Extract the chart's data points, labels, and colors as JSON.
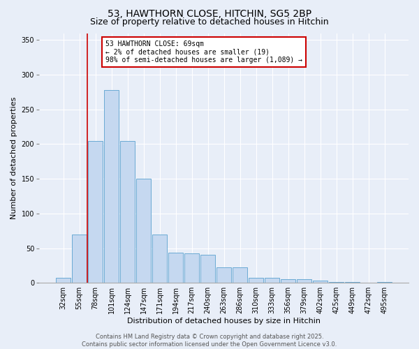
{
  "title": "53, HAWTHORN CLOSE, HITCHIN, SG5 2BP",
  "subtitle": "Size of property relative to detached houses in Hitchin",
  "xlabel": "Distribution of detached houses by size in Hitchin",
  "ylabel": "Number of detached properties",
  "categories": [
    "32sqm",
    "55sqm",
    "78sqm",
    "101sqm",
    "124sqm",
    "147sqm",
    "171sqm",
    "194sqm",
    "217sqm",
    "240sqm",
    "263sqm",
    "286sqm",
    "310sqm",
    "333sqm",
    "356sqm",
    "379sqm",
    "402sqm",
    "425sqm",
    "449sqm",
    "472sqm",
    "495sqm"
  ],
  "values": [
    7,
    70,
    205,
    278,
    205,
    150,
    70,
    43,
    42,
    40,
    22,
    22,
    7,
    7,
    5,
    5,
    3,
    1,
    1,
    0,
    1
  ],
  "bar_color": "#c5d8f0",
  "bar_edge_color": "#6aaad4",
  "property_line_x": 1.5,
  "property_line_color": "#cc0000",
  "annotation_text": "53 HAWTHORN CLOSE: 69sqm\n← 2% of detached houses are smaller (19)\n98% of semi-detached houses are larger (1,089) →",
  "annotation_box_color": "#cc0000",
  "ylim": [
    0,
    360
  ],
  "yticks": [
    0,
    50,
    100,
    150,
    200,
    250,
    300,
    350
  ],
  "bg_color": "#e8eef8",
  "grid_color": "#ffffff",
  "footer": "Contains HM Land Registry data © Crown copyright and database right 2025.\nContains public sector information licensed under the Open Government Licence v3.0.",
  "title_fontsize": 10,
  "subtitle_fontsize": 9,
  "label_fontsize": 8,
  "tick_fontsize": 7,
  "footer_fontsize": 6,
  "annotation_fontsize": 7
}
